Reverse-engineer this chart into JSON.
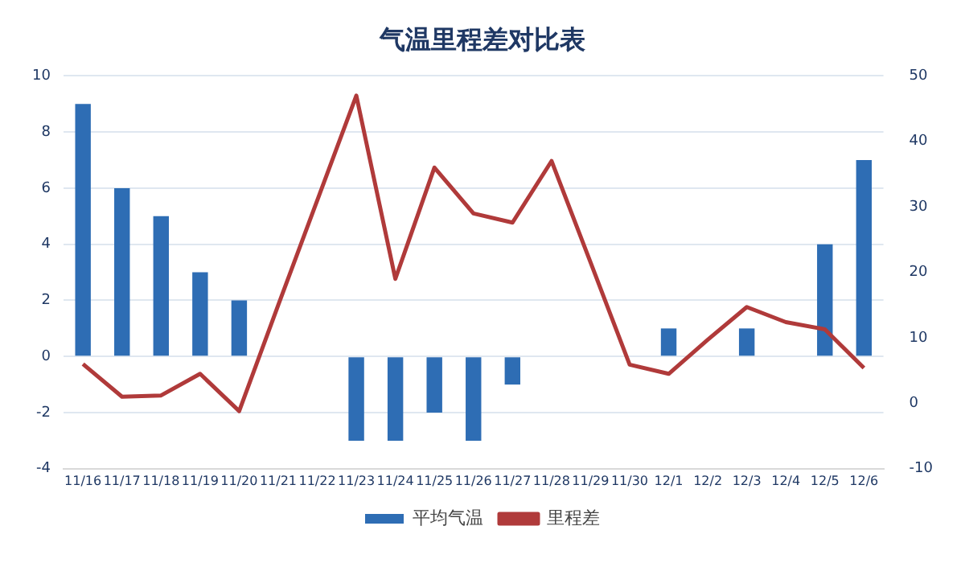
{
  "chart_data": {
    "type": "bar",
    "title": "气温里程差对比表",
    "categories": [
      "11/16",
      "11/17",
      "11/18",
      "11/19",
      "11/20",
      "11/21",
      "11/22",
      "11/23",
      "11/24",
      "11/25",
      "11/26",
      "11/27",
      "11/28",
      "11/29",
      "11/30",
      "12/1",
      "12/2",
      "12/3",
      "12/4",
      "12/5",
      "12/6"
    ],
    "series": [
      {
        "name": "平均气温",
        "color": "#2e6db4",
        "values": [
          9,
          6,
          5,
          3,
          2,
          null,
          null,
          -3,
          -3,
          -2,
          -3,
          -1,
          null,
          null,
          null,
          1,
          null,
          1,
          null,
          4,
          7
        ]
      },
      {
        "name": "里程差",
        "type": "line",
        "axis": "y2",
        "color": "#b03a3a",
        "values": [
          6,
          1,
          1.2,
          4.5,
          -1.2,
          15,
          31,
          47,
          19,
          36,
          29,
          27.6,
          37,
          21.5,
          5.9,
          4.5,
          9.7,
          14.7,
          12.4,
          11.3,
          5.4
        ]
      }
    ],
    "ylim": [
      -4,
      10
    ],
    "yticks": [
      -4,
      -2,
      0,
      2,
      4,
      6,
      8,
      10
    ],
    "y2lim": [
      -10,
      50
    ],
    "y2ticks": [
      -10,
      0,
      10,
      20,
      30,
      40,
      50
    ],
    "grid": "y",
    "legend": "bottom",
    "marker": "none"
  }
}
